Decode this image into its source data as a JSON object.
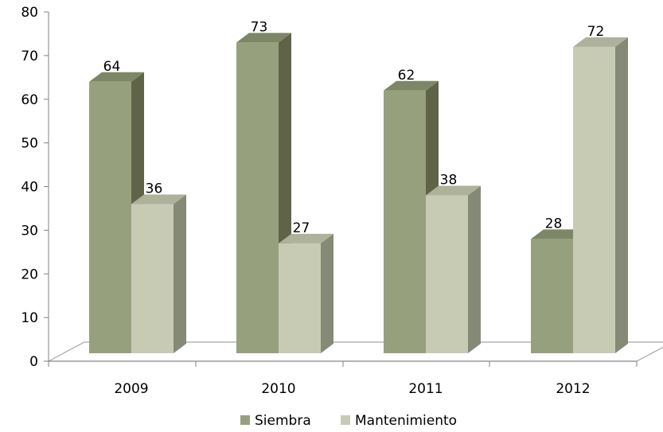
{
  "chart_data": {
    "type": "bar",
    "style": "3d-clustered-column",
    "categories": [
      "2009",
      "2010",
      "2011",
      "2012"
    ],
    "series": [
      {
        "name": "Siembra",
        "values": [
          64,
          73,
          62,
          28
        ],
        "color": "#97a07d"
      },
      {
        "name": "Mantenimiento",
        "values": [
          36,
          27,
          38,
          72
        ],
        "color": "#c8cbb4"
      }
    ],
    "title": "",
    "xlabel": "",
    "ylabel": "",
    "ylim": [
      0,
      80
    ],
    "yticks": [
      0,
      10,
      20,
      30,
      40,
      50,
      60,
      70,
      80
    ],
    "grid": false,
    "data_labels": true,
    "legend": "bottom",
    "colors": {
      "axis": "#808080",
      "floor": "#a6a6a6",
      "siembra_front": "#97a07d",
      "siembra_side": "#5f6449",
      "siembra_top": "#7e8765",
      "mant_front": "#c8cbb4",
      "mant_side": "#858a76",
      "mant_top": "#aeb29a"
    }
  }
}
